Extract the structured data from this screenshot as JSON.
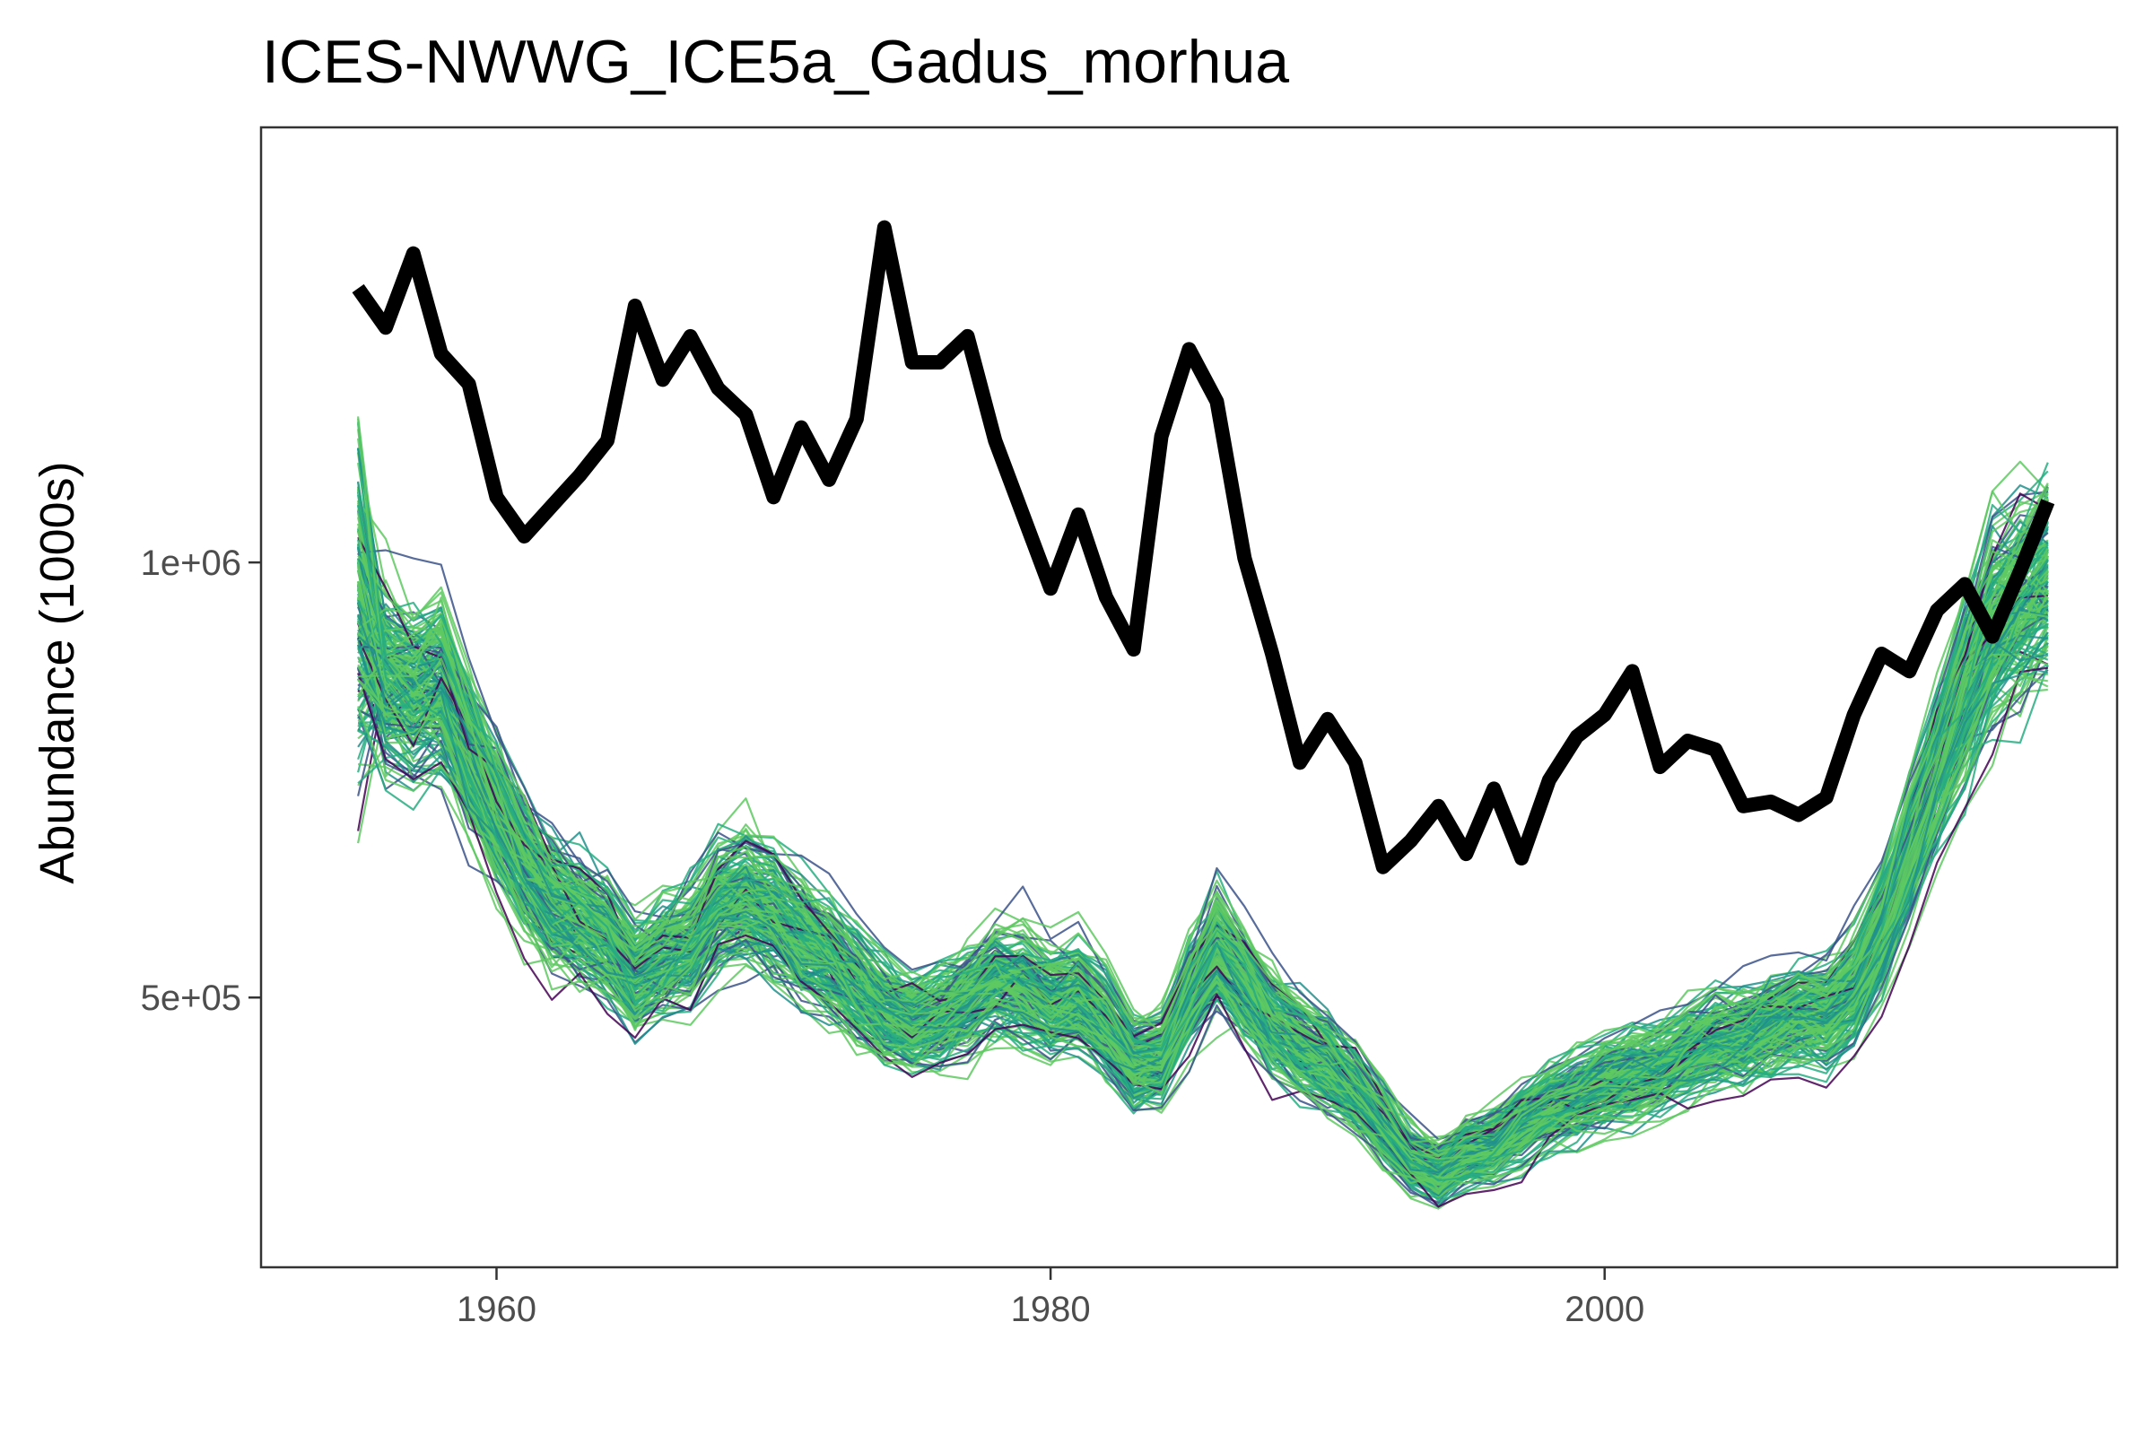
{
  "chart_data": {
    "type": "line",
    "title": "ICES-NWWG_ICE5a_Gadus_morhua",
    "xlabel": "",
    "ylabel": "Abundance (1000s)",
    "xlim": [
      1951.5,
      2018.5
    ],
    "ylim": [
      190000,
      1500000
    ],
    "x_ticks": [
      1960,
      1980,
      2000
    ],
    "y_ticks": [
      500000,
      1000000
    ],
    "x_tick_labels": [
      "1960",
      "1980",
      "2000"
    ],
    "y_tick_labels": [
      "5e+05",
      "1e+06"
    ],
    "grid": false,
    "legend": "none",
    "colors": {
      "observed": "#000000",
      "ensemble_palette": [
        "#440154",
        "#3b528b",
        "#21918c",
        "#27ad81",
        "#5ec962"
      ],
      "panel_border": "#333333",
      "tick_text": "#4d4d4d"
    },
    "observed_series": {
      "x": [
        1955,
        1956,
        1957,
        1958,
        1959,
        1960,
        1961,
        1962,
        1963,
        1964,
        1965,
        1966,
        1967,
        1968,
        1969,
        1970,
        1971,
        1972,
        1973,
        1974,
        1975,
        1976,
        1977,
        1978,
        1979,
        1980,
        1981,
        1982,
        1983,
        1984,
        1985,
        1986,
        1987,
        1988,
        1989,
        1990,
        1991,
        1992,
        1993,
        1994,
        1995,
        1996,
        1997,
        1998,
        1999,
        2000,
        2001,
        2002,
        2003,
        2004,
        2005,
        2006,
        2007,
        2008,
        2009,
        2010,
        2011,
        2012,
        2013,
        2014,
        2015,
        2016
      ],
      "y": [
        1315000,
        1270000,
        1355000,
        1240000,
        1205000,
        1075000,
        1030000,
        1065000,
        1100000,
        1140000,
        1295000,
        1210000,
        1260000,
        1200000,
        1170000,
        1075000,
        1155000,
        1095000,
        1165000,
        1385000,
        1230000,
        1230000,
        1260000,
        1140000,
        1055000,
        970000,
        1055000,
        960000,
        900000,
        1145000,
        1245000,
        1185000,
        1005000,
        895000,
        770000,
        820000,
        770000,
        650000,
        680000,
        720000,
        665000,
        740000,
        660000,
        750000,
        800000,
        825000,
        875000,
        765000,
        795000,
        785000,
        720000,
        725000,
        710000,
        730000,
        825000,
        895000,
        875000,
        945000,
        975000,
        915000,
        990000,
        1070000
      ]
    },
    "ensemble": {
      "x": [
        1955,
        1956,
        1957,
        1958,
        1959,
        1960,
        1961,
        1962,
        1963,
        1964,
        1965,
        1966,
        1967,
        1968,
        1969,
        1970,
        1971,
        1972,
        1973,
        1974,
        1975,
        1976,
        1977,
        1978,
        1979,
        1980,
        1981,
        1982,
        1983,
        1984,
        1985,
        1986,
        1987,
        1988,
        1989,
        1990,
        1991,
        1992,
        1993,
        1994,
        1995,
        1996,
        1997,
        1998,
        1999,
        2000,
        2001,
        2002,
        2003,
        2004,
        2005,
        2006,
        2007,
        2008,
        2009,
        2010,
        2011,
        2012,
        2013,
        2014,
        2015,
        2016
      ],
      "median": [
        950000,
        870000,
        850000,
        860000,
        780000,
        710000,
        650000,
        610000,
        590000,
        570000,
        525000,
        545000,
        560000,
        605000,
        615000,
        595000,
        565000,
        545000,
        515000,
        485000,
        470000,
        480000,
        495000,
        520000,
        515000,
        495000,
        500000,
        470000,
        425000,
        430000,
        500000,
        555000,
        520000,
        470000,
        445000,
        425000,
        395000,
        355000,
        315000,
        300000,
        320000,
        330000,
        355000,
        375000,
        385000,
        400000,
        410000,
        420000,
        435000,
        450000,
        455000,
        470000,
        480000,
        480000,
        510000,
        575000,
        670000,
        760000,
        850000,
        925000,
        955000,
        985000
      ],
      "spread_fraction": 0.1,
      "n_members": 200
    }
  }
}
